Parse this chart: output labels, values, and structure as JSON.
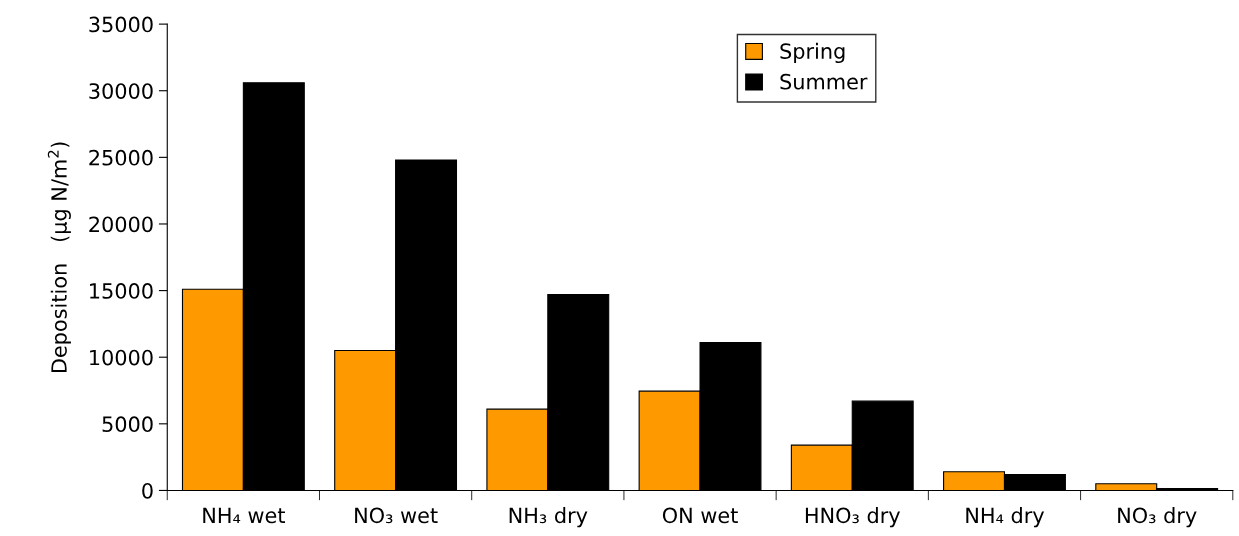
{
  "chart_data": {
    "type": "bar",
    "ylabel": "Deposition   (µg N/m$^{2}$)",
    "categories": [
      "NH₄ wet",
      "NO₃ wet",
      "NH₃ dry",
      "ON wet",
      "HNO₃ dry",
      "NH₄ dry",
      "NO₃ dry"
    ],
    "series": [
      {
        "name": "Spring",
        "color": "#ff9900",
        "values": [
          15100,
          10500,
          6100,
          7450,
          3400,
          1400,
          500
        ]
      },
      {
        "name": "Summer",
        "color": "#000000",
        "values": [
          30600,
          24800,
          14700,
          11100,
          6700,
          1200,
          150
        ]
      }
    ],
    "ylim": [
      0,
      35000
    ],
    "yticks": [
      0,
      5000,
      10000,
      15000,
      20000,
      25000,
      30000,
      35000
    ],
    "grid": false,
    "legend": "top"
  }
}
